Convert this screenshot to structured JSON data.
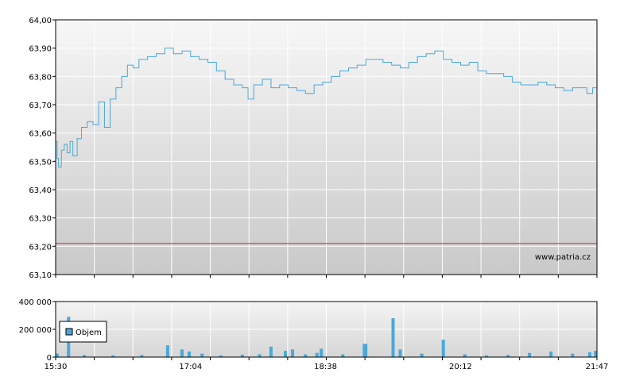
{
  "chart_data": [
    {
      "type": "line",
      "title": "",
      "xlabel": "",
      "ylabel": "",
      "xlim": [
        "15:30",
        "21:47"
      ],
      "ylim": [
        63.1,
        64.0
      ],
      "y_ticks": [
        "63,10",
        "63,20",
        "63,30",
        "63,40",
        "63,50",
        "63,60",
        "63,70",
        "63,80",
        "63,90",
        "64,00"
      ],
      "grid": true,
      "reference_line": {
        "value": 63.21,
        "color": "#cc3333"
      },
      "watermark": "www.patria.cz",
      "series": [
        {
          "color": "#4aa8d8",
          "points": [
            [
              "15:30",
              63.57
            ],
            [
              "15:31",
              63.51
            ],
            [
              "15:32",
              63.48
            ],
            [
              "15:34",
              63.54
            ],
            [
              "15:36",
              63.56
            ],
            [
              "15:38",
              63.53
            ],
            [
              "15:40",
              63.57
            ],
            [
              "15:42",
              63.52
            ],
            [
              "15:45",
              63.58
            ],
            [
              "15:48",
              63.62
            ],
            [
              "15:52",
              63.64
            ],
            [
              "15:56",
              63.63
            ],
            [
              "16:00",
              63.71
            ],
            [
              "16:04",
              63.62
            ],
            [
              "16:08",
              63.72
            ],
            [
              "16:12",
              63.76
            ],
            [
              "16:16",
              63.8
            ],
            [
              "16:20",
              63.84
            ],
            [
              "16:24",
              63.83
            ],
            [
              "16:28",
              63.86
            ],
            [
              "16:34",
              63.87
            ],
            [
              "16:40",
              63.88
            ],
            [
              "16:46",
              63.9
            ],
            [
              "16:52",
              63.88
            ],
            [
              "16:58",
              63.89
            ],
            [
              "17:04",
              63.87
            ],
            [
              "17:10",
              63.86
            ],
            [
              "17:16",
              63.85
            ],
            [
              "17:22",
              63.82
            ],
            [
              "17:28",
              63.79
            ],
            [
              "17:34",
              63.77
            ],
            [
              "17:40",
              63.76
            ],
            [
              "17:44",
              63.72
            ],
            [
              "17:48",
              63.77
            ],
            [
              "17:54",
              63.79
            ],
            [
              "18:00",
              63.76
            ],
            [
              "18:06",
              63.77
            ],
            [
              "18:12",
              63.76
            ],
            [
              "18:18",
              63.75
            ],
            [
              "18:24",
              63.74
            ],
            [
              "18:30",
              63.77
            ],
            [
              "18:36",
              63.78
            ],
            [
              "18:42",
              63.8
            ],
            [
              "18:48",
              63.82
            ],
            [
              "18:54",
              63.83
            ],
            [
              "19:00",
              63.84
            ],
            [
              "19:06",
              63.86
            ],
            [
              "19:12",
              63.86
            ],
            [
              "19:18",
              63.85
            ],
            [
              "19:24",
              63.84
            ],
            [
              "19:30",
              63.83
            ],
            [
              "19:36",
              63.85
            ],
            [
              "19:42",
              63.87
            ],
            [
              "19:48",
              63.88
            ],
            [
              "19:54",
              63.89
            ],
            [
              "20:00",
              63.86
            ],
            [
              "20:06",
              63.85
            ],
            [
              "20:12",
              63.84
            ],
            [
              "20:18",
              63.85
            ],
            [
              "20:24",
              63.82
            ],
            [
              "20:30",
              63.81
            ],
            [
              "20:36",
              63.81
            ],
            [
              "20:42",
              63.8
            ],
            [
              "20:48",
              63.78
            ],
            [
              "20:54",
              63.77
            ],
            [
              "21:00",
              63.77
            ],
            [
              "21:06",
              63.78
            ],
            [
              "21:12",
              63.77
            ],
            [
              "21:18",
              63.76
            ],
            [
              "21:24",
              63.75
            ],
            [
              "21:30",
              63.76
            ],
            [
              "21:36",
              63.76
            ],
            [
              "21:40",
              63.74
            ],
            [
              "21:44",
              63.76
            ],
            [
              "21:47",
              63.75
            ]
          ]
        }
      ]
    },
    {
      "type": "bar",
      "title": "",
      "xlabel": "",
      "ylabel": "",
      "xlim": [
        "15:30",
        "21:47"
      ],
      "ylim": [
        0,
        400000
      ],
      "y_ticks": [
        "0",
        "200 000",
        "400 000"
      ],
      "x_ticks": [
        "15:30",
        "17:04",
        "18:38",
        "20:12",
        "21:47"
      ],
      "grid": true,
      "legend": {
        "position": "top-left",
        "entries": [
          "Objem"
        ]
      },
      "series": [
        {
          "name": "Objem",
          "color": "#4aa8d8",
          "points": [
            [
              "15:31",
              25000
            ],
            [
              "15:39",
              290000
            ],
            [
              "15:50",
              15000
            ],
            [
              "16:10",
              12000
            ],
            [
              "16:30",
              15000
            ],
            [
              "16:48",
              85000
            ],
            [
              "16:58",
              55000
            ],
            [
              "17:03",
              40000
            ],
            [
              "17:12",
              25000
            ],
            [
              "17:25",
              12000
            ],
            [
              "17:40",
              18000
            ],
            [
              "17:52",
              20000
            ],
            [
              "18:00",
              75000
            ],
            [
              "18:10",
              45000
            ],
            [
              "18:15",
              55000
            ],
            [
              "18:24",
              20000
            ],
            [
              "18:32",
              30000
            ],
            [
              "18:35",
              60000
            ],
            [
              "18:50",
              20000
            ],
            [
              "19:05",
              95000
            ],
            [
              "19:06",
              95000
            ],
            [
              "19:25",
              280000
            ],
            [
              "19:30",
              55000
            ],
            [
              "19:45",
              25000
            ],
            [
              "20:00",
              125000
            ],
            [
              "20:15",
              20000
            ],
            [
              "20:30",
              12000
            ],
            [
              "20:45",
              15000
            ],
            [
              "21:00",
              30000
            ],
            [
              "21:15",
              40000
            ],
            [
              "21:30",
              25000
            ],
            [
              "21:42",
              35000
            ],
            [
              "21:46",
              45000
            ]
          ]
        }
      ]
    }
  ]
}
